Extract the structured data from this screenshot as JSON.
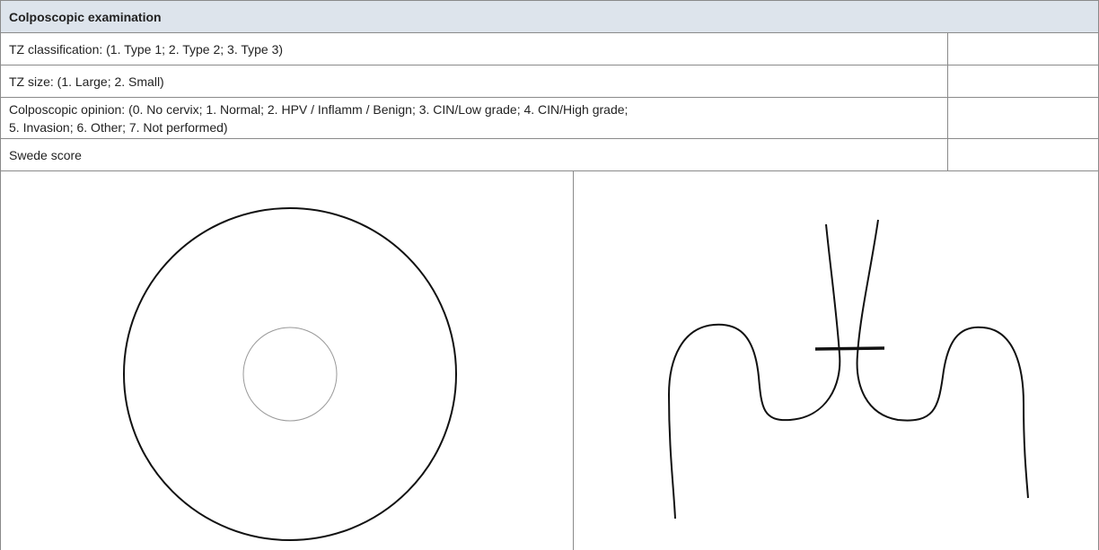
{
  "header": {
    "title": "Colposcopic examination"
  },
  "table": {
    "rows": [
      [
        "TZ classification: (1. Type 1; 2. Type 2; 3. Type 3)"
      ],
      [
        "TZ size: (1. Large; 2. Small)"
      ],
      [
        "Colposcopic opinion: (0. No cervix; 1. Normal; 2. HPV / Inflamm / Benign; 3. CIN/Low grade; 4. CIN/High grade;",
        "5. Invasion; 6. Other; 7. Not performed)"
      ],
      [
        "Swede score"
      ]
    ]
  }
}
